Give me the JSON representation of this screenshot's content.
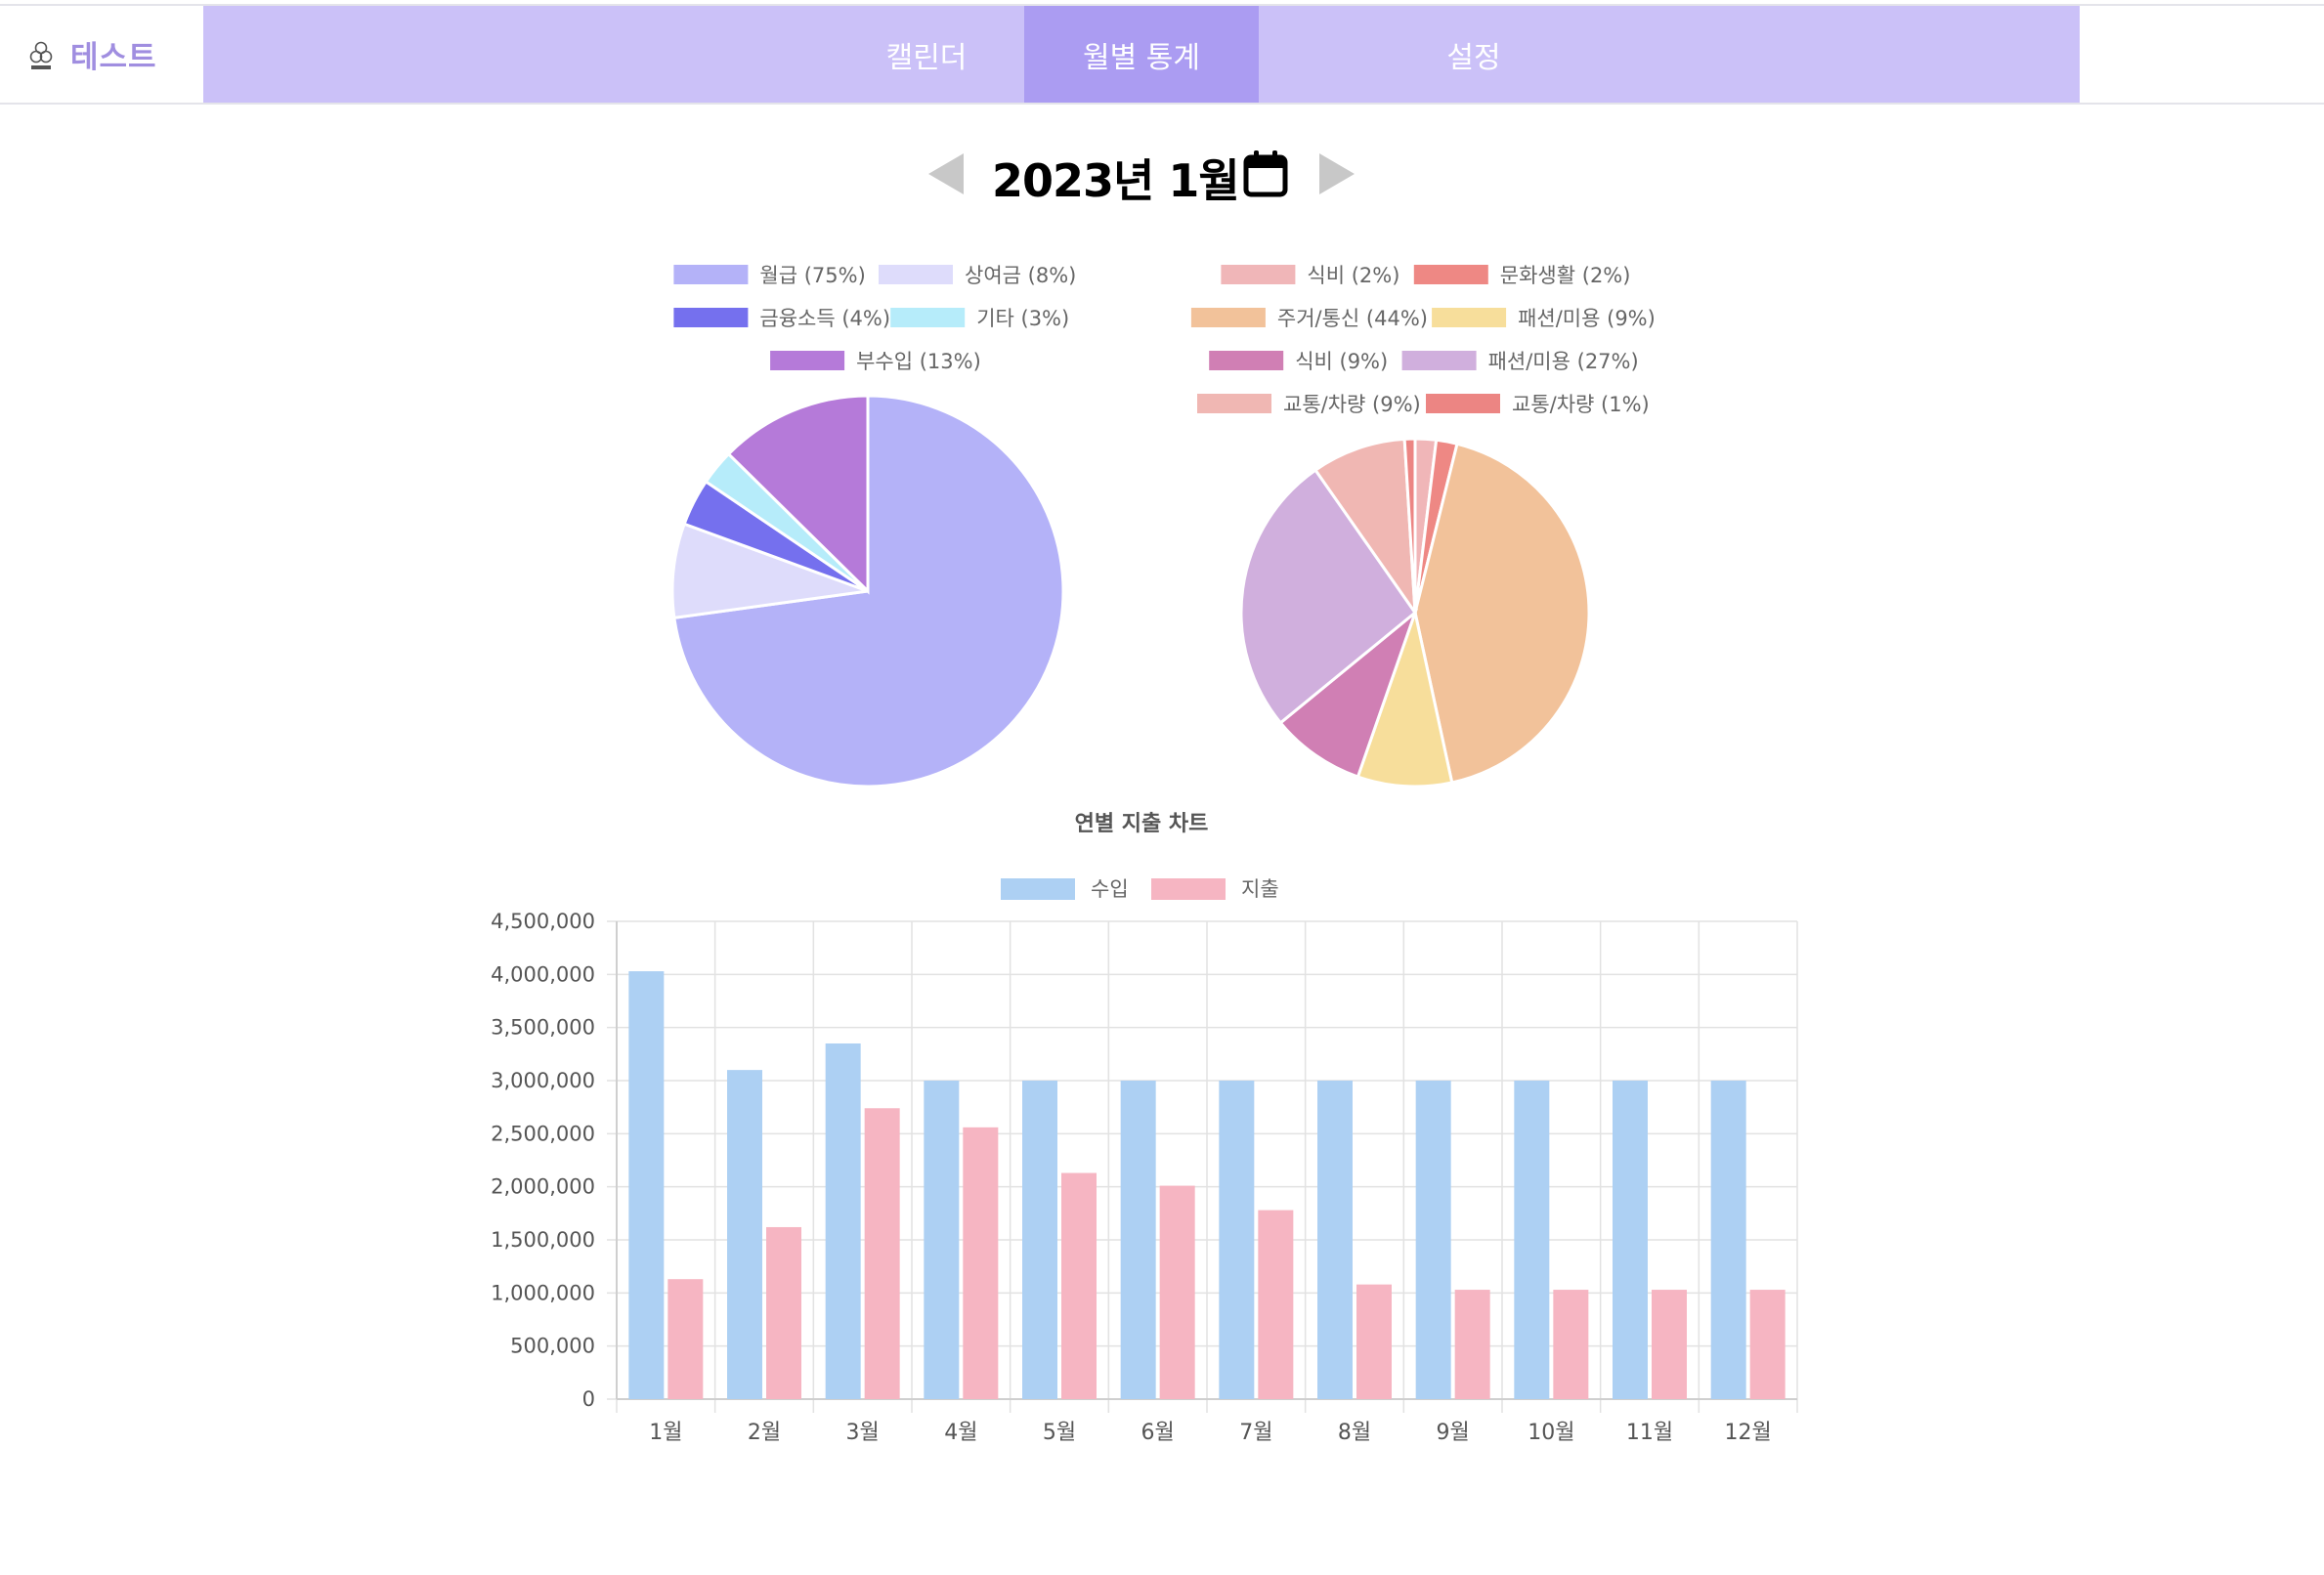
{
  "app": {
    "title": "테스트"
  },
  "nav": {
    "tabs": [
      {
        "label": "캘린더"
      },
      {
        "label": "월별 통계"
      },
      {
        "label": "설정"
      }
    ],
    "active": "월별 통계"
  },
  "month_selector": {
    "label": "2023년 1월"
  },
  "chart_data": [
    {
      "type": "pie",
      "labels": [
        "월급 (75%)",
        "상여금 (8%)",
        "금융소득 (4%)",
        "기타 (3%)",
        "부수입 (13%)"
      ],
      "values": [
        75,
        8,
        4,
        3,
        13
      ],
      "colors": [
        "#b4b2f8",
        "#dedcfb",
        "#7570ee",
        "#b6ecfa",
        "#b57ad9"
      ],
      "legend": "top"
    },
    {
      "type": "pie",
      "labels": [
        "식비 (2%)",
        "문화생활 (2%)",
        "주거/통신 (44%)",
        "패션/미용 (9%)",
        "식비 (9%)",
        "패션/미용 (27%)",
        "교통/차량 (9%)",
        "교통/차량 (1%)"
      ],
      "values": [
        2,
        2,
        44,
        9,
        9,
        27,
        9,
        1
      ],
      "colors": [
        "#f0b6b8",
        "#ee8884",
        "#f2c29a",
        "#f7de9b",
        "#d07fb4",
        "#d0afdd",
        "#f0b7b3",
        "#ec8583"
      ],
      "legend": "top"
    },
    {
      "type": "bar",
      "title": "연별 지출 차트",
      "categories": [
        "1월",
        "2월",
        "3월",
        "4월",
        "5월",
        "6월",
        "7월",
        "8월",
        "9월",
        "10월",
        "11월",
        "12월"
      ],
      "series": [
        {
          "name": "수입",
          "color": "#add0f3",
          "values": [
            4030000,
            3100000,
            3350000,
            3000000,
            3000000,
            3000000,
            3000000,
            3000000,
            3000000,
            3000000,
            3000000,
            3000000
          ]
        },
        {
          "name": "지출",
          "color": "#f6b5c2",
          "values": [
            1130000,
            1620000,
            2740000,
            2560000,
            2130000,
            2010000,
            1780000,
            1080000,
            1030000,
            1030000,
            1030000,
            1030000
          ]
        }
      ],
      "ylim": [
        0,
        4500000
      ],
      "yticks": [
        "0",
        "500,000",
        "1,000,000",
        "1,500,000",
        "2,000,000",
        "2,500,000",
        "3,000,000",
        "3,500,000",
        "4,000,000",
        "4,500,000"
      ],
      "grid": true,
      "legend": "top"
    }
  ]
}
